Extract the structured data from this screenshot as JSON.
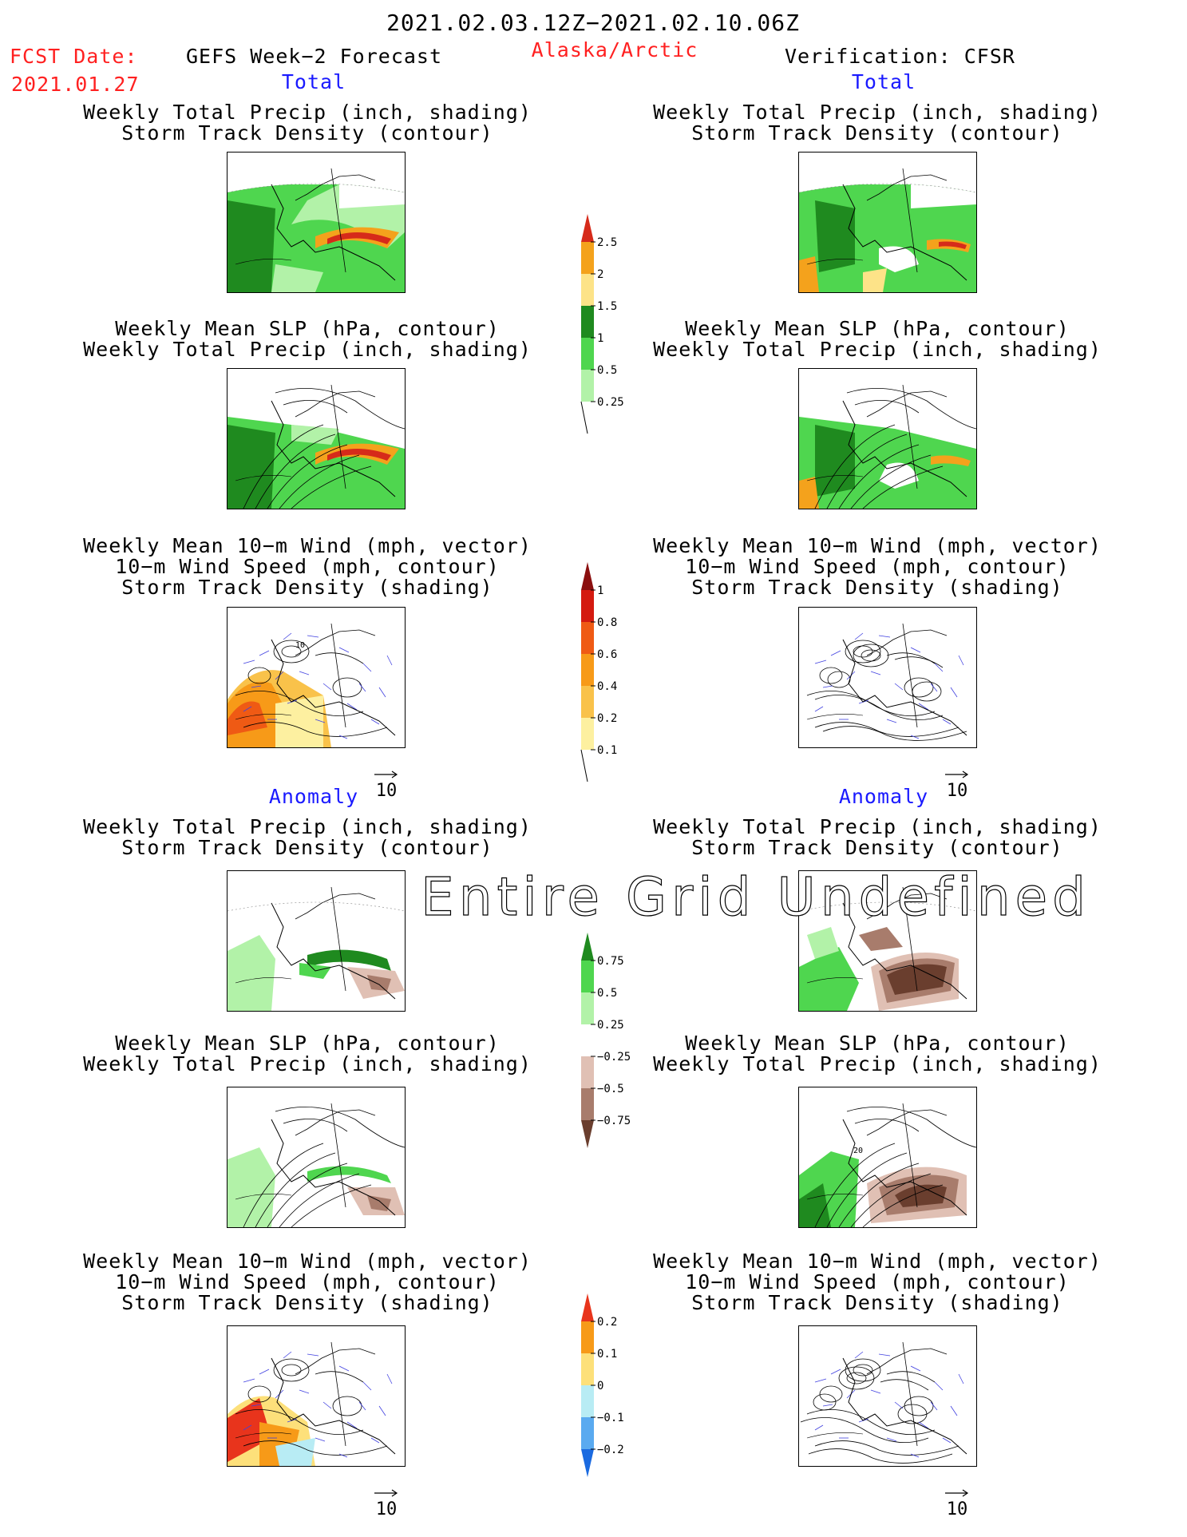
{
  "header": {
    "period": "2021.02.03.12Z−2021.02.10.06Z",
    "fcst_label": "FCST Date:",
    "fcst_date": "2021.01.27",
    "model": "GEFS Week−2 Forecast",
    "region": "Alaska/Arctic",
    "verification": "Verification: CFSR"
  },
  "sections": {
    "left_total": "Total",
    "right_total": "Total",
    "left_anomaly": "Anomaly",
    "right_anomaly": "Anomaly"
  },
  "panel_titles": {
    "precip_storm": [
      "Weekly Total Precip (inch, shading)",
      "Storm Track Density (contour)"
    ],
    "slp_precip": [
      "Weekly Mean SLP (hPa, contour)",
      "Weekly Total Precip (inch, shading)"
    ],
    "wind_storm": [
      "Weekly Mean 10−m Wind (mph, vector)",
      "10−m Wind Speed (mph, contour)",
      "Storm Track Density (shading)"
    ]
  },
  "vector_reference": "10",
  "watermark": "Entire Grid Undefined",
  "colorbars": {
    "precip_total": {
      "labels": [
        "2.5",
        "2",
        "1.5",
        "1",
        "0.5",
        "0.25"
      ],
      "colors": [
        "#d62a1a",
        "#f4a21c",
        "#fde388",
        "#1f8a1f",
        "#4fd64f",
        "#b2f2a8"
      ]
    },
    "storm_total": {
      "labels": [
        "1",
        "0.8",
        "0.6",
        "0.4",
        "0.2",
        "0.1"
      ],
      "colors": [
        "#8b0f0f",
        "#d41a10",
        "#ef5a14",
        "#f79a18",
        "#f9c24a",
        "#fdf0a0"
      ]
    },
    "precip_anom": {
      "labels": [
        "0.75",
        "0.5",
        "0.25",
        "−0.25",
        "−0.5",
        "−0.75"
      ],
      "colors": [
        "#1f8a1f",
        "#4fd64f",
        "#b2f2a8",
        "#ffffff",
        "#e0c0b4",
        "#a87c6c",
        "#6a3e2e"
      ]
    },
    "storm_anom": {
      "labels": [
        "0.2",
        "0.1",
        "0",
        "−0.1",
        "−0.2"
      ],
      "colors": [
        "#e8341c",
        "#f79a18",
        "#fde07a",
        "#b8ecf4",
        "#5aaaf0",
        "#1a6ae0"
      ]
    }
  }
}
